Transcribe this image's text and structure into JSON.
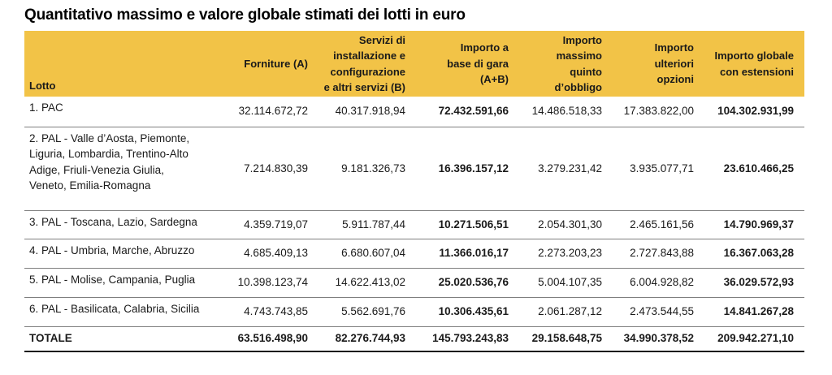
{
  "page": {
    "title": "Quantitativo massimo e valore globale stimati dei lotti in euro"
  },
  "colors": {
    "header_background": "#F2C347",
    "row_separator": "#7f7f7f",
    "bottom_rule": "#1a1a1a"
  },
  "table": {
    "columns": {
      "lotto": {
        "label": "Lotto"
      },
      "forniture": {
        "label": "Forniture (A)"
      },
      "servizi": {
        "label": "Servizi di\ninstallazione e\nconfigurazione\ne altri servizi (B)"
      },
      "base_gara": {
        "label": "Importo a\nbase di gara\n(A+B)"
      },
      "quinto": {
        "label": "Importo\nmassimo\nquinto\nd’obbligo"
      },
      "opzioni": {
        "label": "Importo\nulteriori\nopzioni"
      },
      "globale": {
        "label": "Importo globale\ncon estensioni"
      }
    },
    "rows": [
      {
        "lotto": "1. PAC",
        "forniture": "32.114.672,72",
        "servizi": "40.317.918,94",
        "base_gara": "72.432.591,66",
        "quinto": "14.486.518,33",
        "opzioni": "17.383.822,00",
        "globale": "104.302.931,99"
      },
      {
        "lotto": "2. PAL - Valle d’Aosta, Piemonte,\nLiguria, Lombardia, Trentino-Alto\nAdige, Friuli-Venezia Giulia,\nVeneto, Emilia-Romagna",
        "forniture": "7.214.830,39",
        "servizi": "9.181.326,73",
        "base_gara": "16.396.157,12",
        "quinto": "3.279.231,42",
        "opzioni": "3.935.077,71",
        "globale": "23.610.466,25"
      },
      {
        "lotto": "3. PAL - Toscana, Lazio, Sardegna",
        "forniture": "4.359.719,07",
        "servizi": "5.911.787,44",
        "base_gara": "10.271.506,51",
        "quinto": "2.054.301,30",
        "opzioni": "2.465.161,56",
        "globale": "14.790.969,37"
      },
      {
        "lotto": "4. PAL - Umbria, Marche, Abruzzo",
        "forniture": "4.685.409,13",
        "servizi": "6.680.607,04",
        "base_gara": "11.366.016,17",
        "quinto": "2.273.203,23",
        "opzioni": "2.727.843,88",
        "globale": "16.367.063,28"
      },
      {
        "lotto": "5. PAL - Molise, Campania, Puglia",
        "forniture": "10.398.123,74",
        "servizi": "14.622.413,02",
        "base_gara": "25.020.536,76",
        "quinto": "5.004.107,35",
        "opzioni": "6.004.928,82",
        "globale": "36.029.572,93"
      },
      {
        "lotto": "6. PAL - Basilicata, Calabria, Sicilia",
        "forniture": "4.743.743,85",
        "servizi": "5.562.691,76",
        "base_gara": "10.306.435,61",
        "quinto": "2.061.287,12",
        "opzioni": "2.473.544,55",
        "globale": "14.841.267,28"
      }
    ],
    "total_row": {
      "lotto": "TOTALE",
      "forniture": "63.516.498,90",
      "servizi": "82.276.744,93",
      "base_gara": "145.793.243,83",
      "quinto": "29.158.648,75",
      "opzioni": "34.990.378,52",
      "globale": "209.942.271,10"
    }
  }
}
